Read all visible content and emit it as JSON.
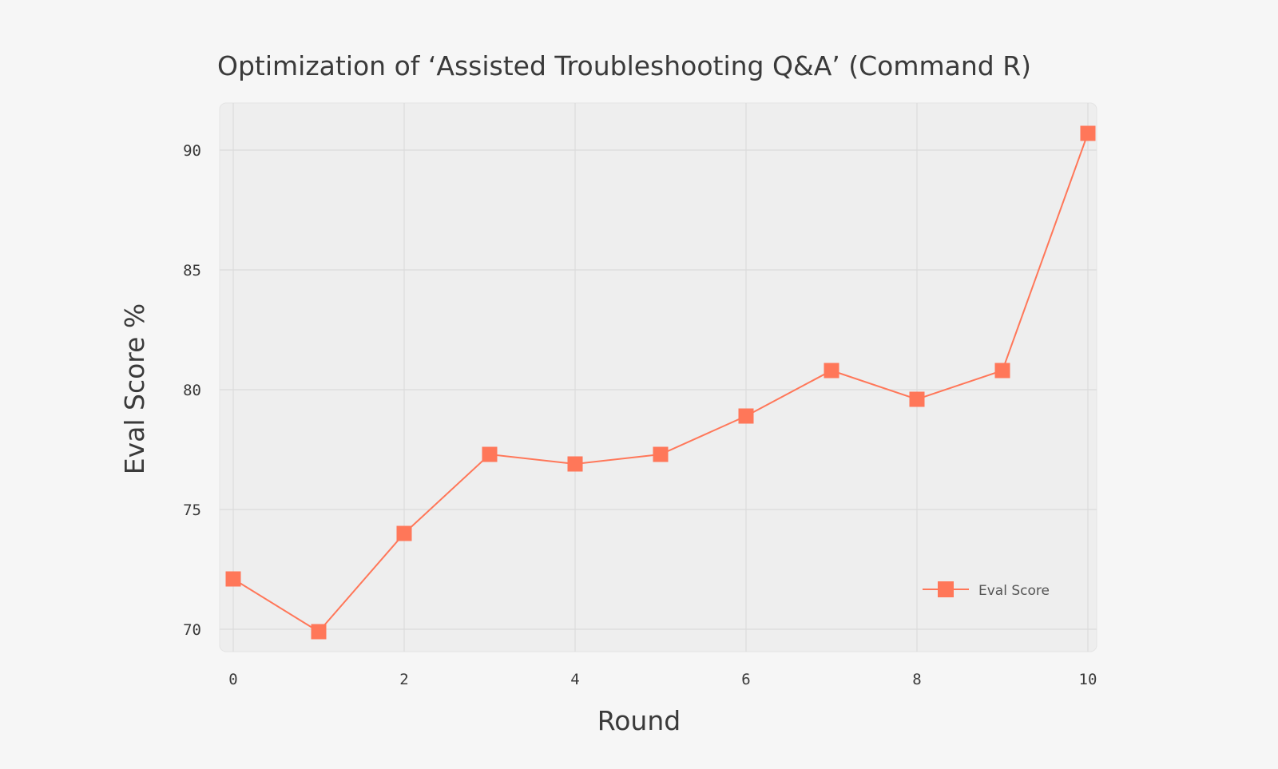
{
  "chart_data": {
    "type": "line",
    "title": "Optimization of ‘Assisted Troubleshooting Q&A’ (Command R)",
    "xlabel": "Round",
    "ylabel": "Eval Score %",
    "x": [
      0,
      1,
      2,
      3,
      4,
      5,
      6,
      7,
      8,
      9,
      10
    ],
    "series": [
      {
        "name": "Eval Score",
        "values": [
          72.1,
          69.9,
          74.0,
          77.3,
          76.9,
          77.3,
          78.9,
          80.8,
          79.6,
          80.8,
          90.7
        ],
        "color": "#ff7759",
        "marker": "square"
      }
    ],
    "xticks": [
      0,
      2,
      4,
      6,
      8,
      10
    ],
    "xtick_labels": [
      "0",
      "2",
      "4",
      "6",
      "8",
      "10"
    ],
    "yticks": [
      70,
      75,
      80,
      85,
      90
    ],
    "ytick_labels": [
      "70",
      "75",
      "80",
      "85",
      "90"
    ],
    "xlim": [
      0,
      10
    ],
    "ylim": [
      69,
      92
    ],
    "grid": true,
    "legend_position": "bottom-right",
    "colors": {
      "background": "#f6f6f6",
      "plot_background": "#eeeeee",
      "series": "#ff7759"
    }
  }
}
